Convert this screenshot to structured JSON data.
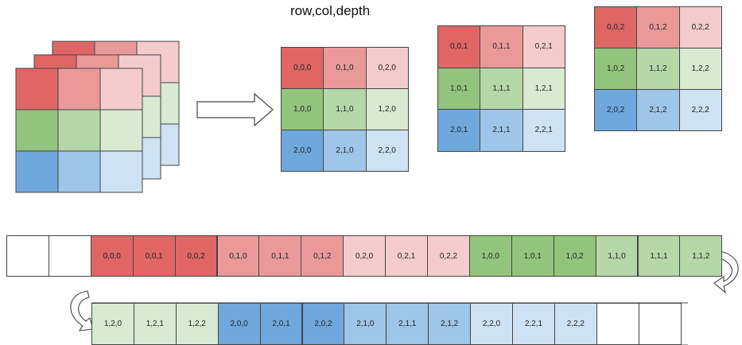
{
  "title": "row,col,depth",
  "colors": {
    "r0": "#e06666",
    "r1": "#ea9999",
    "r2": "#f4cccc",
    "g0": "#93c47d",
    "g1": "#b6d7a8",
    "g2": "#d9ead3",
    "b0": "#6fa8dc",
    "b1": "#9fc5e8",
    "b2": "#cfe2f3",
    "empty": "#ffffff"
  },
  "slices": [
    {
      "cells": [
        [
          "0,0,0",
          "0,1,0",
          "0,2,0"
        ],
        [
          "1,0,0",
          "1,1,0",
          "1,2,0"
        ],
        [
          "2,0,0",
          "2,1,0",
          "2,2,0"
        ]
      ]
    },
    {
      "cells": [
        [
          "0,0,1",
          "0,1,1",
          "0,2,1"
        ],
        [
          "1,0,1",
          "1,1,1",
          "1,2,1"
        ],
        [
          "2,0,1",
          "2,1,1",
          "2,2,1"
        ]
      ]
    },
    {
      "cells": [
        [
          "0,0,2",
          "0,1,2",
          "0,2,2"
        ],
        [
          "1,0,2",
          "1,1,2",
          "1,2,2"
        ],
        [
          "2,0,2",
          "2,1,2",
          "2,2,2"
        ]
      ]
    }
  ],
  "strip1": [
    {
      "label": "",
      "color": "empty"
    },
    {
      "label": "",
      "color": "empty"
    },
    {
      "label": "0,0,0",
      "color": "r0"
    },
    {
      "label": "0,0,1",
      "color": "r0"
    },
    {
      "label": "0,0,2",
      "color": "r0"
    },
    {
      "label": "0,1,0",
      "color": "r1"
    },
    {
      "label": "0,1,1",
      "color": "r1"
    },
    {
      "label": "0,1,2",
      "color": "r1"
    },
    {
      "label": "0,2,0",
      "color": "r2"
    },
    {
      "label": "0,2,1",
      "color": "r2"
    },
    {
      "label": "0,2,2",
      "color": "r2"
    },
    {
      "label": "1,0,0",
      "color": "g0"
    },
    {
      "label": "1,0,1",
      "color": "g0"
    },
    {
      "label": "1,0,2",
      "color": "g0"
    },
    {
      "label": "1,1,0",
      "color": "g1"
    },
    {
      "label": "1,1,1",
      "color": "g1"
    },
    {
      "label": "1,1,2",
      "color": "g1"
    }
  ],
  "strip2": [
    {
      "label": "1,2,0",
      "color": "g2"
    },
    {
      "label": "1,2,1",
      "color": "g2"
    },
    {
      "label": "1,2,2",
      "color": "g2"
    },
    {
      "label": "2,0,0",
      "color": "b0"
    },
    {
      "label": "2,0,1",
      "color": "b0"
    },
    {
      "label": "2,0,2",
      "color": "b0"
    },
    {
      "label": "2,1,0",
      "color": "b1"
    },
    {
      "label": "2,1,1",
      "color": "b1"
    },
    {
      "label": "2,1,2",
      "color": "b1"
    },
    {
      "label": "2,2,0",
      "color": "b2"
    },
    {
      "label": "2,2,1",
      "color": "b2"
    },
    {
      "label": "2,2,2",
      "color": "b2"
    },
    {
      "label": "",
      "color": "empty"
    },
    {
      "label": "",
      "color": "empty"
    }
  ]
}
